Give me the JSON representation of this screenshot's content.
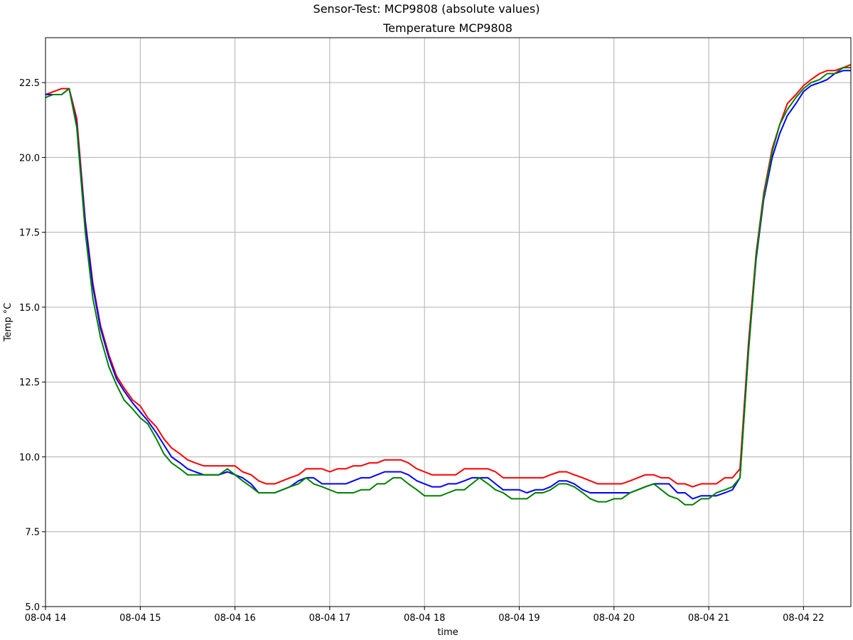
{
  "chart_data": {
    "type": "line",
    "suptitle": "Sensor-Test: MCP9808 (absolute values)",
    "title": "Temperature MCP9808",
    "xlabel": "time",
    "ylabel": "Temp °C",
    "xlim": [
      0,
      8.5
    ],
    "ylim": [
      5.0,
      24.0
    ],
    "grid": true,
    "x_tick_values": [
      0,
      1,
      2,
      3,
      4,
      5,
      6,
      7,
      8
    ],
    "x_tick_labels": [
      "08-04 14",
      "08-04 15",
      "08-04 16",
      "08-04 17",
      "08-04 18",
      "08-04 19",
      "08-04 20",
      "08-04 21",
      "08-04 22"
    ],
    "y_tick_values": [
      5.0,
      7.5,
      10.0,
      12.5,
      15.0,
      17.5,
      20.0,
      22.5
    ],
    "y_tick_labels": [
      "5.0",
      "7.5",
      "10.0",
      "12.5",
      "15.0",
      "17.5",
      "20.0",
      "22.5"
    ],
    "x_units": "hours after 08-04 14:00",
    "series": [
      {
        "color": "#ff0000",
        "points": [
          [
            0.0,
            22.1
          ],
          [
            0.17,
            22.3
          ],
          [
            0.25,
            22.3
          ],
          [
            0.33,
            21.3
          ],
          [
            0.42,
            17.9
          ],
          [
            0.5,
            15.8
          ],
          [
            0.58,
            14.4
          ],
          [
            0.67,
            13.4
          ],
          [
            0.75,
            12.7
          ],
          [
            0.83,
            12.3
          ],
          [
            0.92,
            11.9
          ],
          [
            1.0,
            11.7
          ],
          [
            1.08,
            11.3
          ],
          [
            1.17,
            11.0
          ],
          [
            1.25,
            10.6
          ],
          [
            1.33,
            10.3
          ],
          [
            1.42,
            10.1
          ],
          [
            1.5,
            9.9
          ],
          [
            1.58,
            9.8
          ],
          [
            1.67,
            9.7
          ],
          [
            1.75,
            9.7
          ],
          [
            1.83,
            9.7
          ],
          [
            1.92,
            9.7
          ],
          [
            2.0,
            9.7
          ],
          [
            2.08,
            9.5
          ],
          [
            2.17,
            9.4
          ],
          [
            2.25,
            9.2
          ],
          [
            2.33,
            9.1
          ],
          [
            2.42,
            9.1
          ],
          [
            2.5,
            9.2
          ],
          [
            2.58,
            9.3
          ],
          [
            2.67,
            9.4
          ],
          [
            2.75,
            9.6
          ],
          [
            2.83,
            9.6
          ],
          [
            2.92,
            9.6
          ],
          [
            3.0,
            9.5
          ],
          [
            3.08,
            9.6
          ],
          [
            3.17,
            9.6
          ],
          [
            3.25,
            9.7
          ],
          [
            3.33,
            9.7
          ],
          [
            3.42,
            9.8
          ],
          [
            3.5,
            9.8
          ],
          [
            3.58,
            9.9
          ],
          [
            3.67,
            9.9
          ],
          [
            3.75,
            9.9
          ],
          [
            3.83,
            9.8
          ],
          [
            3.92,
            9.6
          ],
          [
            4.0,
            9.5
          ],
          [
            4.08,
            9.4
          ],
          [
            4.17,
            9.4
          ],
          [
            4.25,
            9.4
          ],
          [
            4.33,
            9.4
          ],
          [
            4.42,
            9.6
          ],
          [
            4.5,
            9.6
          ],
          [
            4.58,
            9.6
          ],
          [
            4.67,
            9.6
          ],
          [
            4.75,
            9.5
          ],
          [
            4.83,
            9.3
          ],
          [
            4.92,
            9.3
          ],
          [
            5.0,
            9.3
          ],
          [
            5.08,
            9.3
          ],
          [
            5.17,
            9.3
          ],
          [
            5.25,
            9.3
          ],
          [
            5.33,
            9.4
          ],
          [
            5.42,
            9.5
          ],
          [
            5.5,
            9.5
          ],
          [
            5.58,
            9.4
          ],
          [
            5.67,
            9.3
          ],
          [
            5.75,
            9.2
          ],
          [
            5.83,
            9.1
          ],
          [
            5.92,
            9.1
          ],
          [
            6.0,
            9.1
          ],
          [
            6.08,
            9.1
          ],
          [
            6.17,
            9.2
          ],
          [
            6.25,
            9.3
          ],
          [
            6.33,
            9.4
          ],
          [
            6.42,
            9.4
          ],
          [
            6.5,
            9.3
          ],
          [
            6.58,
            9.3
          ],
          [
            6.67,
            9.1
          ],
          [
            6.75,
            9.1
          ],
          [
            6.83,
            9.0
          ],
          [
            6.92,
            9.1
          ],
          [
            7.0,
            9.1
          ],
          [
            7.08,
            9.1
          ],
          [
            7.17,
            9.3
          ],
          [
            7.25,
            9.3
          ],
          [
            7.33,
            9.6
          ],
          [
            7.42,
            13.8
          ],
          [
            7.5,
            16.8
          ],
          [
            7.58,
            18.8
          ],
          [
            7.67,
            20.3
          ],
          [
            7.75,
            21.1
          ],
          [
            7.83,
            21.8
          ],
          [
            7.92,
            22.1
          ],
          [
            8.0,
            22.4
          ],
          [
            8.08,
            22.6
          ],
          [
            8.17,
            22.8
          ],
          [
            8.25,
            22.9
          ],
          [
            8.33,
            22.9
          ],
          [
            8.42,
            23.0
          ],
          [
            8.5,
            23.1
          ]
        ]
      },
      {
        "color": "#0000ff",
        "points": [
          [
            0.0,
            22.1
          ],
          [
            0.08,
            22.1
          ],
          [
            0.17,
            22.1
          ],
          [
            0.25,
            22.3
          ],
          [
            0.33,
            21.1
          ],
          [
            0.42,
            17.8
          ],
          [
            0.5,
            15.7
          ],
          [
            0.58,
            14.3
          ],
          [
            0.67,
            13.3
          ],
          [
            0.75,
            12.6
          ],
          [
            0.83,
            12.2
          ],
          [
            0.92,
            11.8
          ],
          [
            1.0,
            11.5
          ],
          [
            1.08,
            11.2
          ],
          [
            1.17,
            10.8
          ],
          [
            1.25,
            10.4
          ],
          [
            1.33,
            10.0
          ],
          [
            1.42,
            9.8
          ],
          [
            1.5,
            9.6
          ],
          [
            1.58,
            9.5
          ],
          [
            1.67,
            9.4
          ],
          [
            1.75,
            9.4
          ],
          [
            1.83,
            9.4
          ],
          [
            1.92,
            9.5
          ],
          [
            2.0,
            9.4
          ],
          [
            2.08,
            9.3
          ],
          [
            2.17,
            9.1
          ],
          [
            2.25,
            8.8
          ],
          [
            2.33,
            8.8
          ],
          [
            2.42,
            8.8
          ],
          [
            2.5,
            8.9
          ],
          [
            2.58,
            9.0
          ],
          [
            2.67,
            9.2
          ],
          [
            2.75,
            9.3
          ],
          [
            2.83,
            9.3
          ],
          [
            2.92,
            9.1
          ],
          [
            3.0,
            9.1
          ],
          [
            3.08,
            9.1
          ],
          [
            3.17,
            9.1
          ],
          [
            3.25,
            9.2
          ],
          [
            3.33,
            9.3
          ],
          [
            3.42,
            9.3
          ],
          [
            3.5,
            9.4
          ],
          [
            3.58,
            9.5
          ],
          [
            3.67,
            9.5
          ],
          [
            3.75,
            9.5
          ],
          [
            3.83,
            9.4
          ],
          [
            3.92,
            9.2
          ],
          [
            4.0,
            9.1
          ],
          [
            4.08,
            9.0
          ],
          [
            4.17,
            9.0
          ],
          [
            4.25,
            9.1
          ],
          [
            4.33,
            9.1
          ],
          [
            4.42,
            9.2
          ],
          [
            4.5,
            9.3
          ],
          [
            4.58,
            9.3
          ],
          [
            4.67,
            9.3
          ],
          [
            4.75,
            9.1
          ],
          [
            4.83,
            8.9
          ],
          [
            4.92,
            8.9
          ],
          [
            5.0,
            8.9
          ],
          [
            5.08,
            8.8
          ],
          [
            5.17,
            8.9
          ],
          [
            5.25,
            8.9
          ],
          [
            5.33,
            9.0
          ],
          [
            5.42,
            9.2
          ],
          [
            5.5,
            9.2
          ],
          [
            5.58,
            9.1
          ],
          [
            5.67,
            8.9
          ],
          [
            5.75,
            8.8
          ],
          [
            5.83,
            8.8
          ],
          [
            5.92,
            8.8
          ],
          [
            6.0,
            8.8
          ],
          [
            6.08,
            8.8
          ],
          [
            6.17,
            8.8
          ],
          [
            6.25,
            8.9
          ],
          [
            6.33,
            9.0
          ],
          [
            6.42,
            9.1
          ],
          [
            6.5,
            9.1
          ],
          [
            6.58,
            9.1
          ],
          [
            6.67,
            8.8
          ],
          [
            6.75,
            8.8
          ],
          [
            6.83,
            8.6
          ],
          [
            6.92,
            8.7
          ],
          [
            7.0,
            8.7
          ],
          [
            7.08,
            8.7
          ],
          [
            7.17,
            8.8
          ],
          [
            7.25,
            8.9
          ],
          [
            7.33,
            9.3
          ],
          [
            7.42,
            13.6
          ],
          [
            7.5,
            16.6
          ],
          [
            7.58,
            18.6
          ],
          [
            7.67,
            20.0
          ],
          [
            7.75,
            20.8
          ],
          [
            7.83,
            21.4
          ],
          [
            7.92,
            21.8
          ],
          [
            8.0,
            22.2
          ],
          [
            8.08,
            22.4
          ],
          [
            8.17,
            22.5
          ],
          [
            8.25,
            22.6
          ],
          [
            8.33,
            22.8
          ],
          [
            8.42,
            22.9
          ],
          [
            8.5,
            22.9
          ]
        ]
      },
      {
        "color": "#008000",
        "points": [
          [
            0.0,
            22.0
          ],
          [
            0.08,
            22.1
          ],
          [
            0.17,
            22.1
          ],
          [
            0.25,
            22.3
          ],
          [
            0.33,
            21.0
          ],
          [
            0.42,
            17.5
          ],
          [
            0.5,
            15.3
          ],
          [
            0.58,
            14.0
          ],
          [
            0.67,
            13.0
          ],
          [
            0.75,
            12.4
          ],
          [
            0.83,
            11.9
          ],
          [
            0.92,
            11.6
          ],
          [
            1.0,
            11.3
          ],
          [
            1.08,
            11.1
          ],
          [
            1.17,
            10.6
          ],
          [
            1.25,
            10.1
          ],
          [
            1.33,
            9.8
          ],
          [
            1.42,
            9.6
          ],
          [
            1.5,
            9.4
          ],
          [
            1.58,
            9.4
          ],
          [
            1.67,
            9.4
          ],
          [
            1.75,
            9.4
          ],
          [
            1.83,
            9.4
          ],
          [
            1.92,
            9.6
          ],
          [
            2.0,
            9.4
          ],
          [
            2.08,
            9.2
          ],
          [
            2.17,
            9.0
          ],
          [
            2.25,
            8.8
          ],
          [
            2.33,
            8.8
          ],
          [
            2.42,
            8.8
          ],
          [
            2.5,
            8.9
          ],
          [
            2.58,
            9.0
          ],
          [
            2.67,
            9.1
          ],
          [
            2.75,
            9.3
          ],
          [
            2.83,
            9.1
          ],
          [
            2.92,
            9.0
          ],
          [
            3.0,
            8.9
          ],
          [
            3.08,
            8.8
          ],
          [
            3.17,
            8.8
          ],
          [
            3.25,
            8.8
          ],
          [
            3.33,
            8.9
          ],
          [
            3.42,
            8.9
          ],
          [
            3.5,
            9.1
          ],
          [
            3.58,
            9.1
          ],
          [
            3.67,
            9.3
          ],
          [
            3.75,
            9.3
          ],
          [
            3.83,
            9.1
          ],
          [
            3.92,
            8.9
          ],
          [
            4.0,
            8.7
          ],
          [
            4.08,
            8.7
          ],
          [
            4.17,
            8.7
          ],
          [
            4.25,
            8.8
          ],
          [
            4.33,
            8.9
          ],
          [
            4.42,
            8.9
          ],
          [
            4.5,
            9.1
          ],
          [
            4.58,
            9.3
          ],
          [
            4.67,
            9.1
          ],
          [
            4.75,
            8.9
          ],
          [
            4.83,
            8.8
          ],
          [
            4.92,
            8.6
          ],
          [
            5.0,
            8.6
          ],
          [
            5.08,
            8.6
          ],
          [
            5.17,
            8.8
          ],
          [
            5.25,
            8.8
          ],
          [
            5.33,
            8.9
          ],
          [
            5.42,
            9.1
          ],
          [
            5.5,
            9.1
          ],
          [
            5.58,
            9.0
          ],
          [
            5.67,
            8.8
          ],
          [
            5.75,
            8.6
          ],
          [
            5.83,
            8.5
          ],
          [
            5.92,
            8.5
          ],
          [
            6.0,
            8.6
          ],
          [
            6.08,
            8.6
          ],
          [
            6.17,
            8.8
          ],
          [
            6.25,
            8.9
          ],
          [
            6.33,
            9.0
          ],
          [
            6.42,
            9.1
          ],
          [
            6.5,
            8.9
          ],
          [
            6.58,
            8.7
          ],
          [
            6.67,
            8.6
          ],
          [
            6.75,
            8.4
          ],
          [
            6.83,
            8.4
          ],
          [
            6.92,
            8.6
          ],
          [
            7.0,
            8.6
          ],
          [
            7.08,
            8.8
          ],
          [
            7.17,
            8.9
          ],
          [
            7.25,
            9.0
          ],
          [
            7.33,
            9.3
          ],
          [
            7.42,
            13.5
          ],
          [
            7.5,
            16.7
          ],
          [
            7.58,
            18.7
          ],
          [
            7.67,
            20.2
          ],
          [
            7.75,
            21.1
          ],
          [
            7.83,
            21.6
          ],
          [
            7.92,
            22.0
          ],
          [
            8.0,
            22.3
          ],
          [
            8.08,
            22.5
          ],
          [
            8.17,
            22.6
          ],
          [
            8.25,
            22.8
          ],
          [
            8.33,
            22.8
          ],
          [
            8.42,
            23.0
          ],
          [
            8.5,
            23.0
          ]
        ]
      }
    ]
  }
}
